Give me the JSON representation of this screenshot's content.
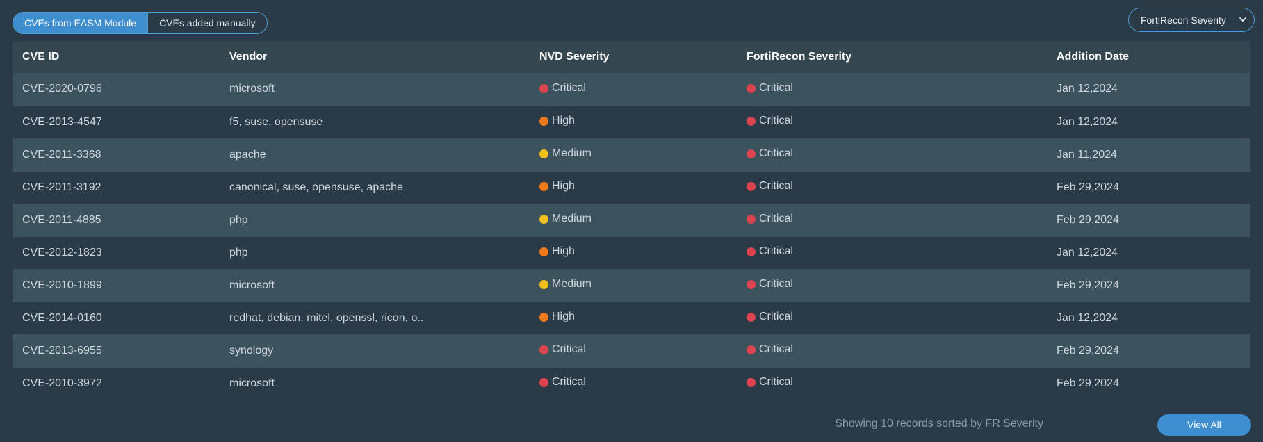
{
  "tabs": {
    "easm_label": "CVEs from EASM Module",
    "manual_label": "CVEs added manually"
  },
  "sort_select": {
    "value": "FortiRecon Severity",
    "icon": "chevron-down-icon"
  },
  "table": {
    "headers": {
      "cve_id": "CVE ID",
      "vendor": "Vendor",
      "nvd": "NVD Severity",
      "fortirecon": "FortiRecon Severity",
      "date": "Addition Date"
    },
    "rows": [
      {
        "cve_id": "CVE-2020-0796",
        "vendor": "microsoft",
        "nvd": "Critical",
        "fortirecon": "Critical",
        "date": "Jan 12,2024"
      },
      {
        "cve_id": "CVE-2013-4547",
        "vendor": "f5, suse, opensuse",
        "nvd": "High",
        "fortirecon": "Critical",
        "date": "Jan 12,2024"
      },
      {
        "cve_id": "CVE-2011-3368",
        "vendor": "apache",
        "nvd": "Medium",
        "fortirecon": "Critical",
        "date": "Jan 11,2024"
      },
      {
        "cve_id": "CVE-2011-3192",
        "vendor": "canonical, suse, opensuse, apache",
        "nvd": "High",
        "fortirecon": "Critical",
        "date": "Feb 29,2024"
      },
      {
        "cve_id": "CVE-2011-4885",
        "vendor": "php",
        "nvd": "Medium",
        "fortirecon": "Critical",
        "date": "Feb 29,2024"
      },
      {
        "cve_id": "CVE-2012-1823",
        "vendor": "php",
        "nvd": "High",
        "fortirecon": "Critical",
        "date": "Jan 12,2024"
      },
      {
        "cve_id": "CVE-2010-1899",
        "vendor": "microsoft",
        "nvd": "Medium",
        "fortirecon": "Critical",
        "date": "Feb 29,2024"
      },
      {
        "cve_id": "CVE-2014-0160",
        "vendor": "redhat, debian, mitel, openssl, ricon, o..",
        "nvd": "High",
        "fortirecon": "Critical",
        "date": "Jan 12,2024"
      },
      {
        "cve_id": "CVE-2013-6955",
        "vendor": "synology",
        "nvd": "Critical",
        "fortirecon": "Critical",
        "date": "Feb 29,2024"
      },
      {
        "cve_id": "CVE-2010-3972",
        "vendor": "microsoft",
        "nvd": "Critical",
        "fortirecon": "Critical",
        "date": "Feb 29,2024"
      }
    ]
  },
  "severity_colors": {
    "Critical": "#d9444e",
    "High": "#f07a1a",
    "Medium": "#f2c01c"
  },
  "footer": {
    "summary": "Showing 10 records sorted by FR Severity",
    "view_all_label": "View All"
  }
}
